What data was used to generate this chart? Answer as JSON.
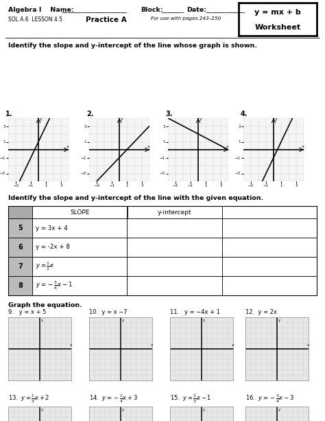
{
  "bg_color": "#ffffff",
  "grid_color": "#cccccc",
  "grid_color2": "#d0d0d0",
  "s1_lines": [
    [
      2,
      1
    ],
    [
      1,
      -1
    ],
    [
      -0.5,
      2
    ],
    [
      2,
      -1
    ]
  ],
  "s1_nums": [
    "1.",
    "2.",
    "3.",
    "4."
  ],
  "table_nums": [
    "5",
    "6",
    "7",
    "8"
  ],
  "table_eqs_text": [
    "y = 3x + 4",
    "y = -2x + 8",
    "",
    ""
  ],
  "table_eqs_math": [
    "",
    "",
    "$y = \\frac{1}{2}x$",
    "$y = -\\frac{3}{4}x - 1$"
  ],
  "eq_top_labels": [
    "9.   y = x + 5",
    "10.  y = x −7",
    "11.   y = −4x + 1",
    "12.  y = 2x"
  ],
  "eq_bot_labels_math": [
    "13.  $y = \\frac{1}{3}x + 2$",
    "14.  $y = -\\frac{1}{4}x + 3$",
    "15.  $y = \\frac{2}{3}x - 1$",
    "16.  $y = -\\frac{3}{4}x - 3$"
  ]
}
